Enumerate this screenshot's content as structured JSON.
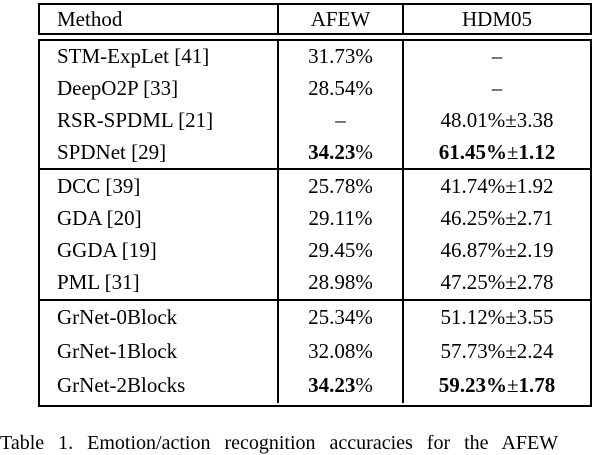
{
  "page": {
    "background": "#ffffff",
    "text_color": "#000000",
    "rule_color": "#000000"
  },
  "table": {
    "header": {
      "method": "Method",
      "afew": "AFEW",
      "hdm05": "HDM05"
    },
    "groups": [
      {
        "rows": [
          {
            "method": "STM-ExpLet [41]",
            "afew": "31.73%",
            "hdm05": "–"
          },
          {
            "method": "DeepO2P [33]",
            "afew": "28.54%",
            "hdm05": "–"
          },
          {
            "method": "RSR-SPDML [21]",
            "afew": "–",
            "hdm05": "48.01%±3.38"
          },
          {
            "method": "SPDNet [29]",
            "afew_num": "34.23",
            "afew_pct": "%",
            "hdm05_val": "61.45%",
            "hdm05_pm": "±",
            "hdm05_err": "1.12"
          }
        ]
      },
      {
        "rows": [
          {
            "method": "DCC [39]",
            "afew": "25.78%",
            "hdm05": "41.74%±1.92"
          },
          {
            "method": "GDA [20]",
            "afew": "29.11%",
            "hdm05": "46.25%±2.71"
          },
          {
            "method": "GGDA [19]",
            "afew": "29.45%",
            "hdm05": "46.87%±2.19"
          },
          {
            "method": "PML [31]",
            "afew": "28.98%",
            "hdm05": "47.25%±2.78"
          }
        ]
      },
      {
        "rows": [
          {
            "method": "GrNet-0Block",
            "afew": "25.34%",
            "hdm05": "51.12%±3.55"
          },
          {
            "method": "GrNet-1Block",
            "afew": "32.08%",
            "hdm05": "57.73%±2.24"
          },
          {
            "method": "GrNet-2Blocks",
            "afew_num": "34.23",
            "afew_pct": "%",
            "hdm05_val": "59.23%",
            "hdm05_pm": "±",
            "hdm05_err": "1.78"
          }
        ]
      }
    ]
  },
  "caption": "Table 1. Emotion/action recognition accuracies for the AFEW"
}
